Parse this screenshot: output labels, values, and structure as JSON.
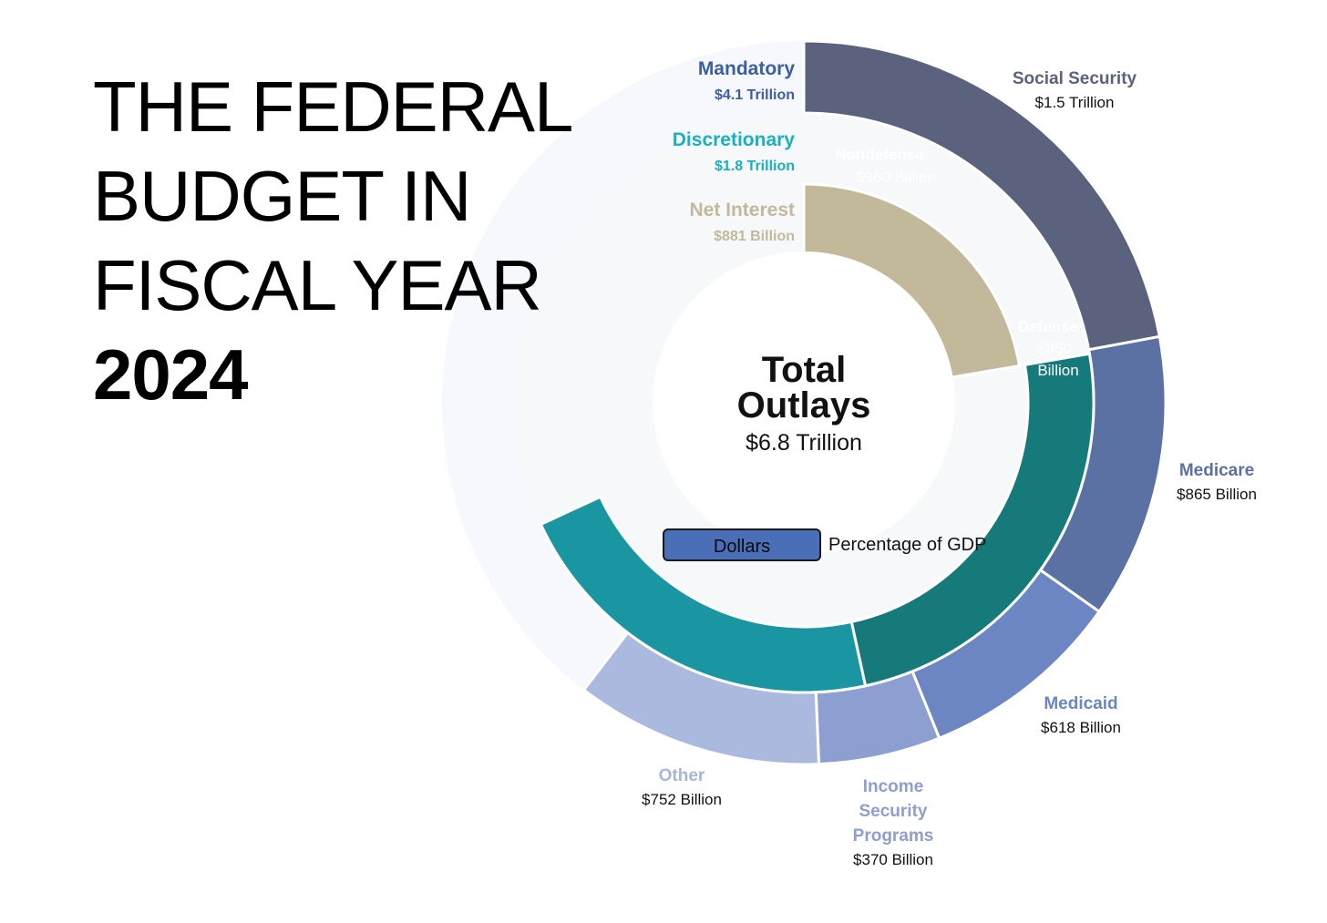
{
  "title": {
    "lines": [
      "THE FEDERAL",
      "BUDGET IN",
      "FISCAL YEAR"
    ],
    "year": "2024"
  },
  "center": {
    "line1": "Total",
    "line2": "Outlays",
    "value": "$6.8 Trillion"
  },
  "toggle": {
    "dollars_label": "Dollars",
    "gdp_label": "Percentage of GDP"
  },
  "colors": {
    "background_ring": "#f6f8fd",
    "inner_fill": "#ffffff",
    "mandatory": "#3c5ea6",
    "discretionary": "#1ab0c3",
    "net_interest": "#c2b99b",
    "label_text": "#111111"
  },
  "chart_data": {
    "type": "sunburst",
    "title": "Total Outlays",
    "total_label": "$6.8 Trillion",
    "inner_ring": [
      {
        "name": "Net Interest",
        "value": 881,
        "label": "$881 Billion",
        "color": "#c2b99b",
        "text_color": "#c2b99b"
      },
      {
        "name": "Nondefense",
        "value": 960,
        "label": "$960 Billion",
        "color": "#167a7b",
        "text_color": "#ffffff",
        "label_lines": [
          "$960 Billion"
        ]
      },
      {
        "name": "Defense",
        "value": 850,
        "label": "$850 Billion",
        "color": "#1a96a3",
        "text_color": "#ffffff",
        "label_lines": [
          "$850",
          "Billion"
        ]
      }
    ],
    "outer_ring": [
      {
        "name": "Social Security",
        "value": 1500,
        "label": "$1.5 Trillion",
        "color": "#5a627d",
        "name_color": "#5a627d",
        "name_lines": [
          "Social Security"
        ]
      },
      {
        "name": "Medicare",
        "value": 865,
        "label": "$865 Billion",
        "color": "#5b71a3",
        "name_color": "#5b71a3",
        "name_lines": [
          "Medicare"
        ]
      },
      {
        "name": "Medicaid",
        "value": 618,
        "label": "$618 Billion",
        "color": "#6b86c2",
        "name_color": "#6b86c2",
        "name_lines": [
          "Medicaid"
        ]
      },
      {
        "name": "Income Security Programs",
        "value": 370,
        "label": "$370 Billion",
        "color": "#8c9fd0",
        "name_color": "#8c9fd0",
        "name_lines": [
          "Income",
          "Security",
          "Programs"
        ]
      },
      {
        "name": "Other",
        "value": 752,
        "label": "$752 Billion",
        "color": "#abb9df",
        "name_color": "#a8b6da",
        "name_lines": [
          "Other"
        ]
      }
    ],
    "legend": [
      {
        "name": "Mandatory",
        "value": "$4.1 Trillion",
        "color": "#3c5ea6"
      },
      {
        "name": "Discretionary",
        "value": "$1.8 Trillion",
        "color": "#1ab0c3"
      },
      {
        "name": "Net Interest",
        "value": "$881 Billion",
        "color": "#c2b99b"
      }
    ],
    "units": "billions of dollars"
  }
}
